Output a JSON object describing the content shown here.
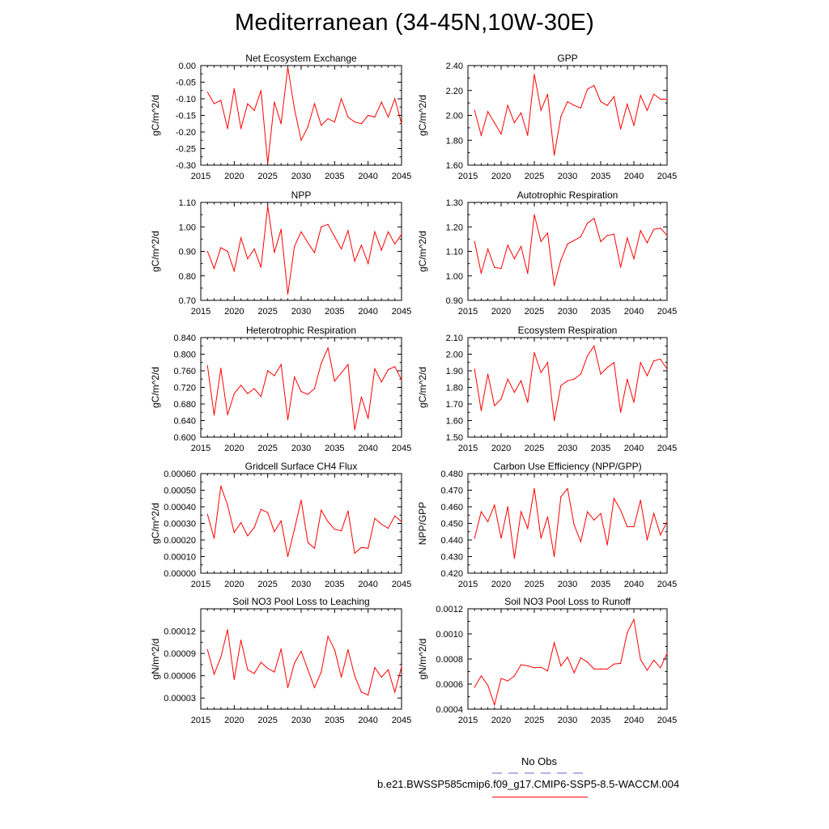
{
  "title": "Mediterranean (34-45N,10W-30E)",
  "legend": {
    "obs_label": "No Obs",
    "obs_color": "#6464d2",
    "model_label": "b.e21.BWSSP585cmip6.f09_g17.CMIP6-SSP5-8.5-WACCM.004",
    "model_color": "#ff0000"
  },
  "chart_data": [
    {
      "type": "line",
      "title": "Net Ecosystem Exchange",
      "ylabel": "gC/m^2/d",
      "xlim": [
        2015,
        2045
      ],
      "ylim": [
        -0.3,
        0.0
      ],
      "xticks": [
        "2015",
        "2020",
        "2025",
        "2030",
        "2035",
        "2040",
        "2045"
      ],
      "yticks": [
        "0.00",
        "-0.05",
        "-0.10",
        "-0.15",
        "-0.20",
        "-0.25",
        "-0.30"
      ],
      "x": [
        2016,
        2017,
        2018,
        2019,
        2020,
        2021,
        2022,
        2023,
        2024,
        2025,
        2026,
        2027,
        2028,
        2029,
        2030,
        2031,
        2032,
        2033,
        2034,
        2035,
        2036,
        2037,
        2038,
        2039,
        2040,
        2041,
        2042,
        2043,
        2044,
        2045
      ],
      "values": [
        -0.08,
        -0.115,
        -0.105,
        -0.19,
        -0.07,
        -0.19,
        -0.115,
        -0.135,
        -0.075,
        -0.295,
        -0.11,
        -0.175,
        -0.005,
        -0.13,
        -0.225,
        -0.185,
        -0.115,
        -0.18,
        -0.16,
        -0.17,
        -0.1,
        -0.155,
        -0.17,
        -0.175,
        -0.15,
        -0.155,
        -0.11,
        -0.155,
        -0.1,
        -0.175
      ]
    },
    {
      "type": "line",
      "title": "GPP",
      "ylabel": "gC/m^2/d",
      "xlim": [
        2015,
        2045
      ],
      "ylim": [
        1.6,
        2.4
      ],
      "xticks": [
        "2015",
        "2020",
        "2025",
        "2030",
        "2035",
        "2040",
        "2045"
      ],
      "yticks": [
        "2.40",
        "2.20",
        "2.00",
        "1.80",
        "1.60"
      ],
      "x": [
        2016,
        2017,
        2018,
        2019,
        2020,
        2021,
        2022,
        2023,
        2024,
        2025,
        2026,
        2027,
        2028,
        2029,
        2030,
        2031,
        2032,
        2033,
        2034,
        2035,
        2036,
        2037,
        2038,
        2039,
        2040,
        2041,
        2042,
        2043,
        2044,
        2045
      ],
      "values": [
        2.04,
        1.84,
        2.03,
        1.94,
        1.85,
        2.08,
        1.94,
        2.02,
        1.84,
        2.33,
        2.04,
        2.17,
        1.68,
        1.99,
        2.11,
        2.08,
        2.06,
        2.21,
        2.24,
        2.11,
        2.08,
        2.15,
        1.89,
        2.09,
        1.92,
        2.16,
        2.04,
        2.17,
        2.13,
        2.13
      ]
    },
    {
      "type": "line",
      "title": "NPP",
      "ylabel": "gC/m^2/d",
      "xlim": [
        2015,
        2045
      ],
      "ylim": [
        0.7,
        1.1
      ],
      "xticks": [
        "2015",
        "2020",
        "2025",
        "2030",
        "2035",
        "2040",
        "2045"
      ],
      "yticks": [
        "1.10",
        "1.00",
        "0.90",
        "0.80",
        "0.70"
      ],
      "x": [
        2016,
        2017,
        2018,
        2019,
        2020,
        2021,
        2022,
        2023,
        2024,
        2025,
        2026,
        2027,
        2028,
        2029,
        2030,
        2031,
        2032,
        2033,
        2034,
        2035,
        2036,
        2037,
        2038,
        2039,
        2040,
        2041,
        2042,
        2043,
        2044,
        2045
      ],
      "values": [
        0.9,
        0.83,
        0.915,
        0.9,
        0.82,
        0.955,
        0.87,
        0.91,
        0.835,
        1.085,
        0.895,
        0.99,
        0.725,
        0.92,
        0.98,
        0.935,
        0.895,
        1.0,
        1.01,
        0.96,
        0.91,
        0.985,
        0.86,
        0.925,
        0.85,
        0.98,
        0.905,
        0.98,
        0.93,
        0.97
      ]
    },
    {
      "type": "line",
      "title": "Autotrophic Respiration",
      "ylabel": "gC/m^2/d",
      "xlim": [
        2015,
        2045
      ],
      "ylim": [
        0.9,
        1.3
      ],
      "xticks": [
        "2015",
        "2020",
        "2025",
        "2030",
        "2035",
        "2040",
        "2045"
      ],
      "yticks": [
        "1.30",
        "1.20",
        "1.10",
        "1.00",
        "0.90"
      ],
      "x": [
        2016,
        2017,
        2018,
        2019,
        2020,
        2021,
        2022,
        2023,
        2024,
        2025,
        2026,
        2027,
        2028,
        2029,
        2030,
        2031,
        2032,
        2033,
        2034,
        2035,
        2036,
        2037,
        2038,
        2039,
        2040,
        2041,
        2042,
        2043,
        2044,
        2045
      ],
      "values": [
        1.14,
        1.01,
        1.11,
        1.035,
        1.03,
        1.125,
        1.07,
        1.12,
        1.01,
        1.25,
        1.14,
        1.175,
        0.96,
        1.065,
        1.13,
        1.145,
        1.16,
        1.215,
        1.235,
        1.14,
        1.165,
        1.17,
        1.035,
        1.155,
        1.07,
        1.185,
        1.135,
        1.19,
        1.195,
        1.165
      ]
    },
    {
      "type": "line",
      "title": "Heterotrophic Respiration",
      "ylabel": "gC/m^2/d",
      "xlim": [
        2015,
        2045
      ],
      "ylim": [
        0.6,
        0.84
      ],
      "xticks": [
        "2015",
        "2020",
        "2025",
        "2030",
        "2035",
        "2040",
        "2045"
      ],
      "yticks": [
        "0.840",
        "0.800",
        "0.760",
        "0.720",
        "0.680",
        "0.640",
        "0.600"
      ],
      "x": [
        2016,
        2017,
        2018,
        2019,
        2020,
        2021,
        2022,
        2023,
        2024,
        2025,
        2026,
        2027,
        2028,
        2029,
        2030,
        2031,
        2032,
        2033,
        2034,
        2035,
        2036,
        2037,
        2038,
        2039,
        2040,
        2041,
        2042,
        2043,
        2044,
        2045
      ],
      "values": [
        0.772,
        0.653,
        0.766,
        0.654,
        0.705,
        0.725,
        0.705,
        0.717,
        0.698,
        0.76,
        0.748,
        0.775,
        0.642,
        0.745,
        0.71,
        0.703,
        0.717,
        0.778,
        0.815,
        0.735,
        0.755,
        0.775,
        0.618,
        0.697,
        0.645,
        0.765,
        0.733,
        0.763,
        0.77,
        0.738
      ]
    },
    {
      "type": "line",
      "title": "Ecosystem Respiration",
      "ylabel": "gC/m^2/d",
      "xlim": [
        2015,
        2045
      ],
      "ylim": [
        1.5,
        2.1
      ],
      "xticks": [
        "2015",
        "2020",
        "2025",
        "2030",
        "2035",
        "2040",
        "2045"
      ],
      "yticks": [
        "2.10",
        "2.00",
        "1.90",
        "1.80",
        "1.70",
        "1.60",
        "1.50"
      ],
      "x": [
        2016,
        2017,
        2018,
        2019,
        2020,
        2021,
        2022,
        2023,
        2024,
        2025,
        2026,
        2027,
        2028,
        2029,
        2030,
        2031,
        2032,
        2033,
        2034,
        2035,
        2036,
        2037,
        2038,
        2039,
        2040,
        2041,
        2042,
        2043,
        2044,
        2045
      ],
      "values": [
        1.91,
        1.66,
        1.88,
        1.69,
        1.73,
        1.85,
        1.77,
        1.84,
        1.71,
        2.01,
        1.89,
        1.95,
        1.6,
        1.81,
        1.84,
        1.85,
        1.88,
        1.99,
        2.05,
        1.88,
        1.92,
        1.95,
        1.65,
        1.85,
        1.71,
        1.95,
        1.87,
        1.96,
        1.97,
        1.91
      ]
    },
    {
      "type": "line",
      "title": "Gridcell Surface CH4 Flux",
      "ylabel": "gC/m^2/d",
      "xlim": [
        2015,
        2045
      ],
      "ylim": [
        0.0,
        0.0006
      ],
      "xticks": [
        "2015",
        "2020",
        "2025",
        "2030",
        "2035",
        "2040",
        "2045"
      ],
      "yticks": [
        "0.00060",
        "0.00050",
        "0.00040",
        "0.00030",
        "0.00020",
        "0.00010",
        "0.00000"
      ],
      "x": [
        2016,
        2017,
        2018,
        2019,
        2020,
        2021,
        2022,
        2023,
        2024,
        2025,
        2026,
        2027,
        2028,
        2029,
        2030,
        2031,
        2032,
        2033,
        2034,
        2035,
        2036,
        2037,
        2038,
        2039,
        2040,
        2041,
        2042,
        2043,
        2044,
        2045
      ],
      "values": [
        0.000355,
        0.00021,
        0.000525,
        0.00041,
        0.000245,
        0.000305,
        0.000225,
        0.000275,
        0.000385,
        0.000365,
        0.00025,
        0.000315,
        0.0001,
        0.000265,
        0.00044,
        0.000185,
        0.00015,
        0.00038,
        0.00031,
        0.000265,
        0.000255,
        0.000375,
        0.00012,
        0.000155,
        0.00015,
        0.00033,
        0.000295,
        0.00027,
        0.000345,
        0.00031
      ]
    },
    {
      "type": "line",
      "title": "Carbon Use Efficiency (NPP/GPP)",
      "ylabel": "NPP/GPP",
      "xlim": [
        2015,
        2045
      ],
      "ylim": [
        0.42,
        0.48
      ],
      "xticks": [
        "2015",
        "2020",
        "2025",
        "2030",
        "2035",
        "2040",
        "2045"
      ],
      "yticks": [
        "0.480",
        "0.470",
        "0.460",
        "0.450",
        "0.440",
        "0.430",
        "0.420"
      ],
      "x": [
        2016,
        2017,
        2018,
        2019,
        2020,
        2021,
        2022,
        2023,
        2024,
        2025,
        2026,
        2027,
        2028,
        2029,
        2030,
        2031,
        2032,
        2033,
        2034,
        2035,
        2036,
        2037,
        2038,
        2039,
        2040,
        2041,
        2042,
        2043,
        2044,
        2045
      ],
      "values": [
        0.441,
        0.457,
        0.451,
        0.461,
        0.441,
        0.46,
        0.429,
        0.457,
        0.447,
        0.471,
        0.441,
        0.454,
        0.43,
        0.466,
        0.471,
        0.449,
        0.439,
        0.457,
        0.452,
        0.456,
        0.437,
        0.465,
        0.458,
        0.448,
        0.448,
        0.464,
        0.44,
        0.456,
        0.443,
        0.451
      ]
    },
    {
      "type": "line",
      "title": "Soil NO3 Pool Loss to Leaching",
      "ylabel": "gN/m^2/d",
      "xlim": [
        2015,
        2045
      ],
      "ylim": [
        1.5e-05,
        0.00015
      ],
      "xticks": [
        "2015",
        "2020",
        "2025",
        "2030",
        "2035",
        "2040",
        "2045"
      ],
      "yticks": [
        "0.00012",
        "0.00009",
        "0.00006",
        "0.00003"
      ],
      "ytick_values": [
        0.00012,
        9e-05,
        6e-05,
        3e-05
      ],
      "x": [
        2016,
        2017,
        2018,
        2019,
        2020,
        2021,
        2022,
        2023,
        2024,
        2025,
        2026,
        2027,
        2028,
        2029,
        2030,
        2031,
        2032,
        2033,
        2034,
        2035,
        2036,
        2037,
        2038,
        2039,
        2040,
        2041,
        2042,
        2043,
        2044,
        2045
      ],
      "values": [
        9.5e-05,
        6.2e-05,
        8.5e-05,
        0.000122,
        5.5e-05,
        0.000108,
        6.8e-05,
        6.3e-05,
        7.8e-05,
        7e-05,
        6.5e-05,
        9.6e-05,
        4.4e-05,
        7.7e-05,
        9.3e-05,
        6.8e-05,
        4.4e-05,
        6.5e-05,
        0.000113,
        9.5e-05,
        5.8e-05,
        9.5e-05,
        6e-05,
        3.8e-05,
        3.4e-05,
        7.1e-05,
        5.8e-05,
        6.8e-05,
        3.8e-05,
        7.2e-05
      ]
    },
    {
      "type": "line",
      "title": "Soil NO3 Pool Loss to Runoff",
      "ylabel": "gN/m^2/d",
      "xlim": [
        2015,
        2045
      ],
      "ylim": [
        0.0004,
        0.0012
      ],
      "xticks": [
        "2015",
        "2020",
        "2025",
        "2030",
        "2035",
        "2040",
        "2045"
      ],
      "yticks": [
        "0.0012",
        "0.0010",
        "0.0008",
        "0.0006",
        "0.0004"
      ],
      "x": [
        2016,
        2017,
        2018,
        2019,
        2020,
        2021,
        2022,
        2023,
        2024,
        2025,
        2026,
        2027,
        2028,
        2029,
        2030,
        2031,
        2032,
        2033,
        2034,
        2035,
        2036,
        2037,
        2038,
        2039,
        2040,
        2041,
        2042,
        2043,
        2044,
        2045
      ],
      "values": [
        0.000575,
        0.000665,
        0.00059,
        0.000435,
        0.000645,
        0.000625,
        0.000665,
        0.000755,
        0.000745,
        0.00073,
        0.000735,
        0.000705,
        0.00093,
        0.000745,
        0.000815,
        0.00069,
        0.00081,
        0.000775,
        0.00072,
        0.00072,
        0.00072,
        0.00076,
        0.000765,
        0.00101,
        0.001115,
        0.000795,
        0.00071,
        0.00079,
        0.00073,
        0.000845
      ]
    }
  ]
}
